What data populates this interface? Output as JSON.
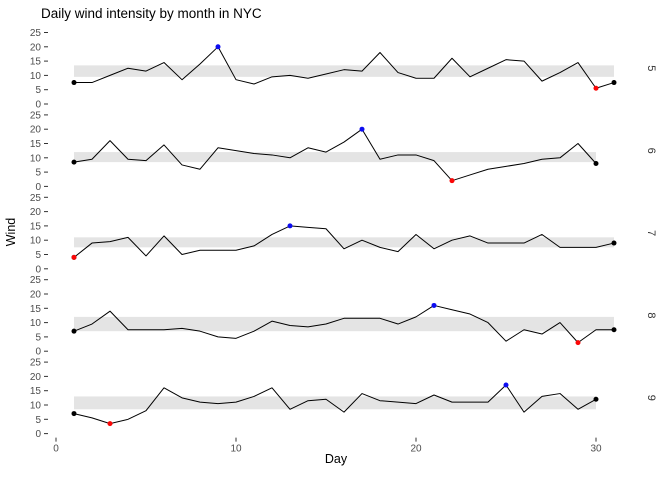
{
  "chart_data": {
    "type": "line",
    "title": "Daily wind intensity by month in NYC",
    "xlabel": "Day",
    "ylabel": "Wind",
    "xlim": [
      0,
      31
    ],
    "ylim": [
      0,
      25
    ],
    "x_ticks": [
      0,
      10,
      20,
      30
    ],
    "y_ticks": [
      25,
      20,
      15,
      10,
      5,
      0
    ],
    "legend": "none",
    "grid": "off",
    "facet_layout": "rows, strip labels on right",
    "facets": [
      {
        "month": "5",
        "days": 31,
        "band": [
          9.5,
          13.5
        ],
        "max_day": 9,
        "min_day": 30,
        "values": [
          7.5,
          7.5,
          10,
          12.5,
          11.5,
          14.5,
          8.5,
          14,
          20,
          8.5,
          7,
          9.5,
          10,
          9,
          10.5,
          12,
          11.5,
          18,
          11,
          9,
          9,
          16,
          9.5,
          12.5,
          15.5,
          15,
          8,
          11,
          14.5,
          5.5,
          7.5
        ]
      },
      {
        "month": "6",
        "days": 30,
        "band": [
          8.5,
          12
        ],
        "max_day": 17,
        "min_day": 22,
        "values": [
          8.5,
          9.5,
          16,
          9.5,
          9,
          14.5,
          7.5,
          6,
          13.5,
          12.5,
          11.5,
          11,
          10,
          13.5,
          12,
          15.5,
          20,
          9.5,
          11,
          11,
          9,
          2,
          4,
          6,
          7,
          8,
          9.5,
          10,
          15,
          8
        ]
      },
      {
        "month": "7",
        "days": 31,
        "band": [
          7.5,
          11
        ],
        "max_day": 13,
        "min_day": 1,
        "values": [
          4,
          9,
          9.5,
          11,
          4.5,
          11.5,
          5,
          6.5,
          6.5,
          6.5,
          8,
          12,
          15,
          14.5,
          14,
          7,
          10,
          7.5,
          6,
          12,
          7,
          10,
          11.5,
          9,
          9,
          9,
          12,
          7.5,
          7.5,
          7.5,
          9
        ]
      },
      {
        "month": "8",
        "days": 31,
        "band": [
          7,
          12
        ],
        "max_day": 21,
        "min_day": 29,
        "values": [
          7,
          9.5,
          14,
          7.5,
          7.5,
          7.5,
          8,
          7,
          5,
          4.5,
          7,
          10.5,
          9,
          8.5,
          9.5,
          11.5,
          11.5,
          11.5,
          9.5,
          12,
          16,
          14.5,
          13,
          10,
          3.5,
          7.5,
          6,
          10,
          3,
          7.5,
          7.5
        ]
      },
      {
        "month": "9",
        "days": 30,
        "band": [
          8.5,
          13
        ],
        "max_day": 25,
        "min_day": 3,
        "values": [
          7,
          5.5,
          3.5,
          5,
          8,
          16,
          12.5,
          11,
          10.5,
          11,
          13,
          16,
          8.5,
          11.5,
          12,
          7.5,
          14,
          11.5,
          11,
          10.5,
          13.5,
          11,
          11,
          11,
          17,
          7.5,
          13,
          14,
          8.5,
          12
        ]
      }
    ],
    "colors": {
      "line": "#000000",
      "band": "#e4e4e4",
      "max_point": "#0d0df0",
      "min_point": "#fb0707",
      "endpoint": "#000000",
      "tick_text": "#4d4d4d",
      "tick_mark": "#333333",
      "strip_text": "#333333"
    }
  }
}
